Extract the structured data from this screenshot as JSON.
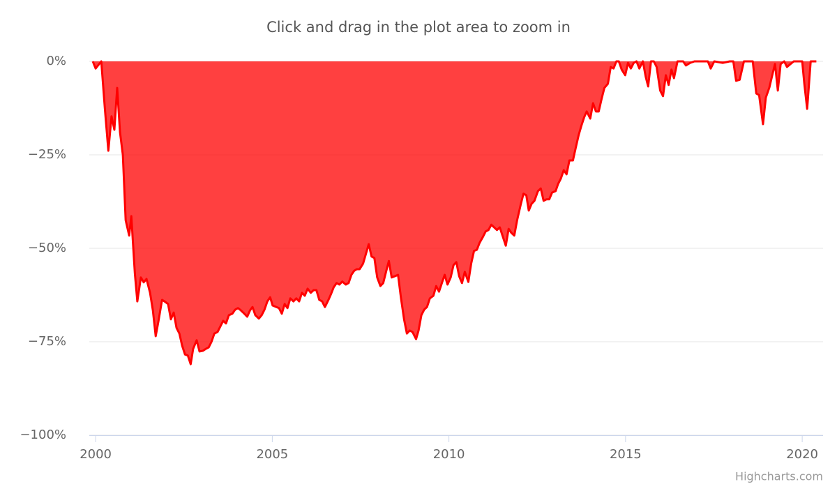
{
  "chart_data": {
    "type": "area",
    "title": "Click and drag in the plot area to zoom in",
    "credits": "Highcharts.com",
    "color": "#ff0000",
    "x": [
      1999.92,
      2000.0,
      2000.16,
      2000.26,
      2000.36,
      2000.45,
      2000.53,
      2000.61,
      2000.69,
      2000.77,
      2000.85,
      2000.95,
      2001.01,
      2001.11,
      2001.18,
      2001.28,
      2001.36,
      2001.44,
      2001.54,
      2001.62,
      2001.7,
      2001.78,
      2001.88,
      2001.95,
      2002.05,
      2002.13,
      2002.21,
      2002.29,
      2002.37,
      2002.45,
      2002.53,
      2002.61,
      2002.69,
      2002.76,
      2002.86,
      2002.94,
      2003.04,
      2003.12,
      2003.2,
      2003.28,
      2003.36,
      2003.45,
      2003.53,
      2003.61,
      2003.69,
      2003.77,
      2003.87,
      2003.95,
      2004.03,
      2004.11,
      2004.21,
      2004.29,
      2004.37,
      2004.44,
      2004.52,
      2004.62,
      2004.7,
      2004.78,
      2004.86,
      2004.94,
      2005.01,
      2005.11,
      2005.19,
      2005.27,
      2005.35,
      2005.43,
      2005.51,
      2005.6,
      2005.68,
      2005.76,
      2005.84,
      2005.92,
      2006.0,
      2006.09,
      2006.17,
      2006.25,
      2006.33,
      2006.41,
      2006.49,
      2006.59,
      2006.66,
      2006.74,
      2006.82,
      2006.9,
      2006.98,
      2007.08,
      2007.16,
      2007.24,
      2007.32,
      2007.39,
      2007.47,
      2007.57,
      2007.65,
      2007.73,
      2007.81,
      2007.89,
      2007.97,
      2008.06,
      2008.14,
      2008.22,
      2008.3,
      2008.38,
      2008.46,
      2008.56,
      2008.64,
      2008.73,
      2008.81,
      2008.89,
      2008.97,
      2009.07,
      2009.14,
      2009.22,
      2009.3,
      2009.38,
      2009.46,
      2009.56,
      2009.64,
      2009.72,
      2009.8,
      2009.88,
      2009.96,
      2010.05,
      2010.13,
      2010.21,
      2010.29,
      2010.37,
      2010.45,
      2010.55,
      2010.63,
      2010.71,
      2010.79,
      2010.87,
      2010.96,
      2011.04,
      2011.12,
      2011.2,
      2011.28,
      2011.36,
      2011.44,
      2011.53,
      2011.61,
      2011.69,
      2011.77,
      2011.85,
      2011.93,
      2012.03,
      2012.11,
      2012.19,
      2012.26,
      2012.34,
      2012.42,
      2012.52,
      2012.6,
      2012.68,
      2012.76,
      2012.84,
      2012.92,
      2013.02,
      2013.09,
      2013.17,
      2013.25,
      2013.33,
      2013.41,
      2013.51,
      2013.59,
      2013.67,
      2013.75,
      2013.83,
      2013.9,
      2014.0,
      2014.08,
      2014.16,
      2014.24,
      2014.32,
      2014.4,
      2014.5,
      2014.58,
      2014.66,
      2014.74,
      2014.81,
      2014.89,
      2014.99,
      2015.07,
      2015.15,
      2015.23,
      2015.31,
      2015.39,
      2015.49,
      2015.57,
      2015.64,
      2015.72,
      2015.8,
      2015.88,
      2015.98,
      2016.06,
      2016.14,
      2016.22,
      2016.3,
      2016.37,
      2016.47,
      2016.63,
      2016.71,
      2016.83,
      2016.95,
      2017.33,
      2017.41,
      2017.51,
      2017.75,
      2017.95,
      2018.05,
      2018.13,
      2018.23,
      2018.35,
      2018.6,
      2018.7,
      2018.78,
      2018.89,
      2018.97,
      2019.07,
      2019.17,
      2019.23,
      2019.31,
      2019.39,
      2019.49,
      2019.57,
      2019.67,
      2019.76,
      2020.0,
      2020.06,
      2020.14,
      2020.24,
      2020.4
    ],
    "values": [
      0,
      -1.9,
      0,
      -12.5,
      -23.9,
      -14.7,
      -18.3,
      -7.1,
      -19,
      -25,
      -42.5,
      -46.6,
      -41.4,
      -56.7,
      -64.2,
      -57.8,
      -59.1,
      -58.2,
      -61.9,
      -66.6,
      -73.5,
      -69.4,
      -63.8,
      -64.2,
      -64.9,
      -69,
      -67.2,
      -71.3,
      -72.8,
      -76.1,
      -78.4,
      -78.7,
      -81,
      -76.9,
      -74.6,
      -77.6,
      -77.4,
      -76.9,
      -76.5,
      -75,
      -72.8,
      -72.4,
      -70.9,
      -69.4,
      -70.1,
      -67.9,
      -67.5,
      -66.4,
      -66,
      -66.6,
      -67.5,
      -68.3,
      -66.6,
      -65.7,
      -67.9,
      -68.8,
      -67.9,
      -66.4,
      -64.2,
      -63.1,
      -65.3,
      -65.7,
      -66,
      -67.5,
      -64.9,
      -66,
      -63.4,
      -64.2,
      -63.4,
      -64.2,
      -61.9,
      -62.7,
      -60.8,
      -61.9,
      -61.2,
      -61.2,
      -63.8,
      -64.2,
      -65.7,
      -63.8,
      -62.3,
      -60.4,
      -59.3,
      -59.7,
      -58.9,
      -59.7,
      -59.3,
      -57.1,
      -56,
      -55.6,
      -55.6,
      -54.1,
      -51.5,
      -48.9,
      -52.2,
      -52.6,
      -57.8,
      -60.1,
      -59.3,
      -56.3,
      -53.4,
      -57.8,
      -57.5,
      -57.1,
      -63.1,
      -69,
      -72.8,
      -72,
      -72.4,
      -74.3,
      -72,
      -67.9,
      -66.4,
      -65.7,
      -63.4,
      -62.7,
      -60.1,
      -61.6,
      -59.3,
      -57.1,
      -59.7,
      -57.8,
      -54.5,
      -53.7,
      -57.5,
      -59.3,
      -56.3,
      -59,
      -54.1,
      -50.7,
      -50.4,
      -48.5,
      -47,
      -45.5,
      -45.1,
      -43.7,
      -44.4,
      -45.1,
      -44.4,
      -47,
      -49.3,
      -44.8,
      -45.9,
      -46.6,
      -42.5,
      -38.4,
      -35.4,
      -35.8,
      -39.9,
      -38.1,
      -37.3,
      -34.7,
      -34,
      -37.3,
      -36.9,
      -36.9,
      -35.1,
      -34.7,
      -32.8,
      -31.3,
      -29.1,
      -30.2,
      -26.5,
      -26.5,
      -23.1,
      -19.8,
      -17.2,
      -14.9,
      -13.4,
      -15.3,
      -11.2,
      -13.4,
      -13.4,
      -10.1,
      -7.1,
      -6,
      -1.5,
      -1.9,
      0,
      0,
      -2.2,
      -3.7,
      -0.4,
      -1.9,
      -0.4,
      0,
      -1.9,
      0,
      -4.1,
      -6.7,
      0,
      0,
      -1.5,
      -7.8,
      -9.3,
      -3.7,
      -6.3,
      -2.2,
      -4.5,
      0,
      0,
      -1.1,
      -0.4,
      0,
      0,
      -1.9,
      0,
      -0.4,
      0,
      0,
      -5.2,
      -4.9,
      0,
      0,
      -8.6,
      -9,
      -16.8,
      -9.7,
      -7,
      -3,
      -0.7,
      -7.8,
      -0.7,
      0,
      -1.5,
      -0.7,
      0,
      0,
      -6,
      -12.7,
      0,
      0
    ],
    "xlim": [
      1999.82,
      2020.59
    ],
    "xticks": [
      2000,
      2005,
      2010,
      2015,
      2020
    ],
    "ylim": [
      -100,
      0
    ],
    "yticks": [
      {
        "value": 0,
        "label": "0%"
      },
      {
        "value": -25,
        "label": "−25%"
      },
      {
        "value": -50,
        "label": "−50%"
      },
      {
        "value": -75,
        "label": "−75%"
      },
      {
        "value": -100,
        "label": "−100%"
      }
    ],
    "grid": true
  }
}
